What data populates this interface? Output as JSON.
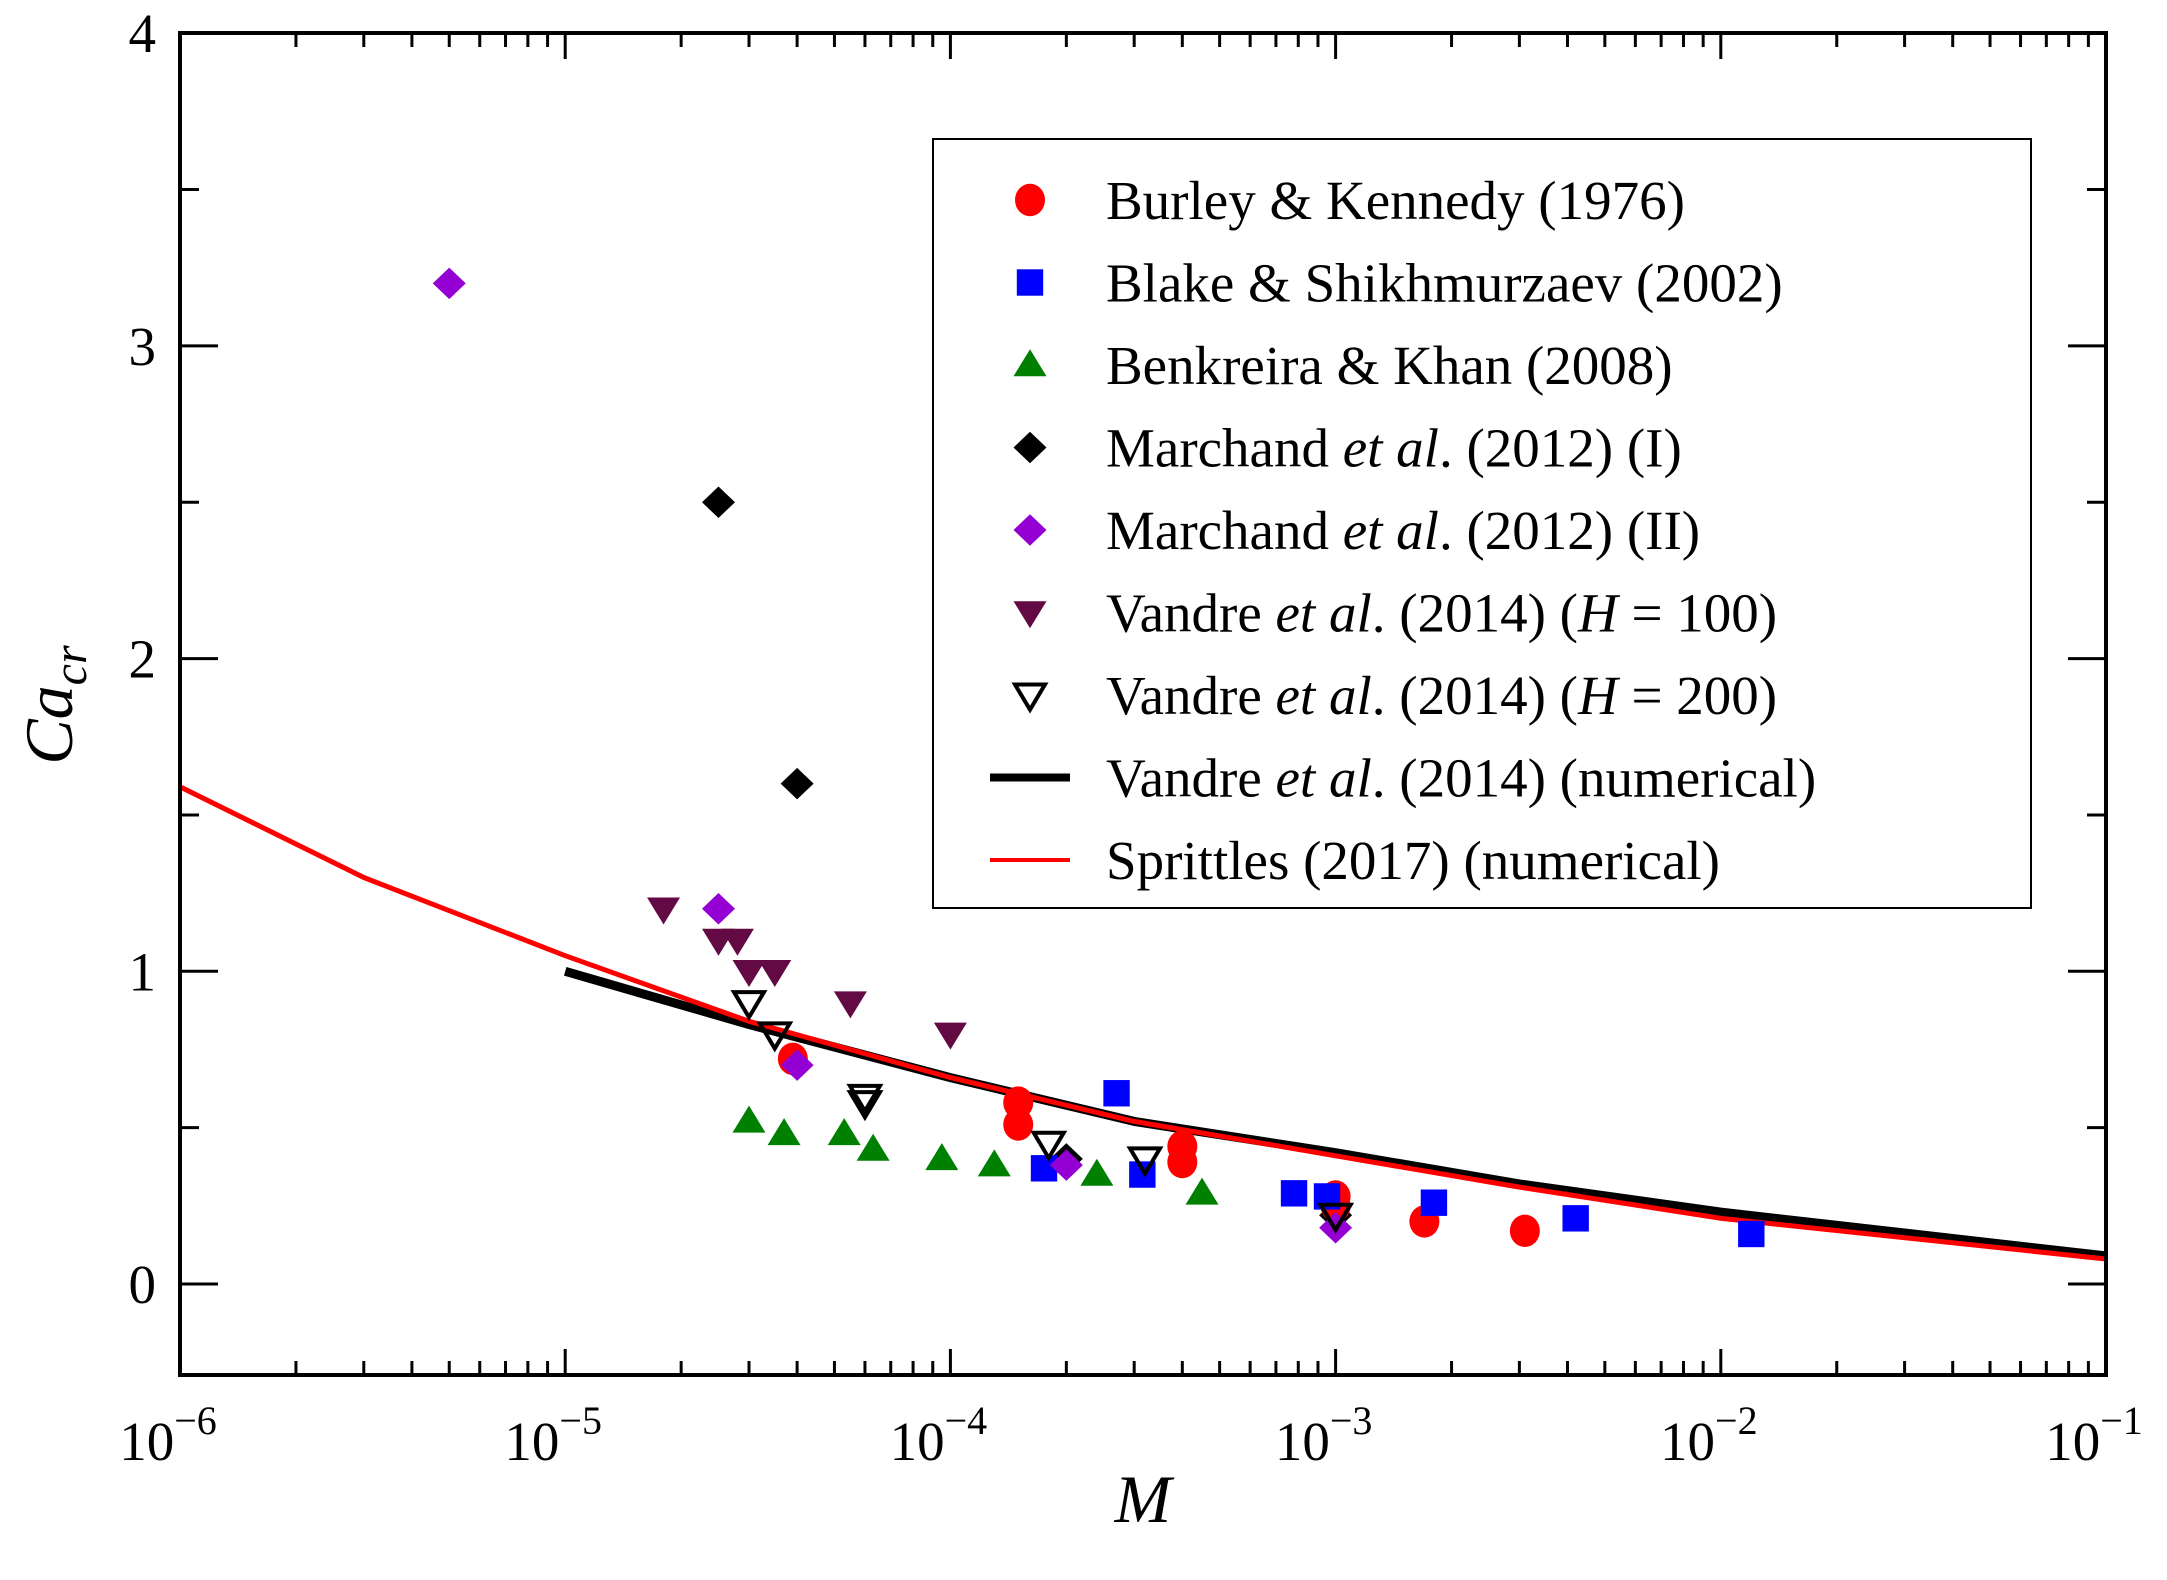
{
  "chart_data": {
    "type": "scatter",
    "title": "",
    "xlabel": "M",
    "ylabel": {
      "base": "Ca",
      "subscript": "cr"
    },
    "xscale": "log",
    "xlim": [
      1e-06,
      0.1
    ],
    "ylim": [
      -0.3,
      4
    ],
    "xticks": [
      {
        "value": 1e-06,
        "base": "10",
        "exp": "−6"
      },
      {
        "value": 1e-05,
        "base": "10",
        "exp": "−5"
      },
      {
        "value": 0.0001,
        "base": "10",
        "exp": "−4"
      },
      {
        "value": 0.001,
        "base": "10",
        "exp": "−3"
      },
      {
        "value": 0.01,
        "base": "10",
        "exp": "−2"
      },
      {
        "value": 0.1,
        "base": "10",
        "exp": "−1"
      }
    ],
    "yticks": [
      {
        "value": 0,
        "label": "0"
      },
      {
        "value": 1,
        "label": "1"
      },
      {
        "value": 2,
        "label": "2"
      },
      {
        "value": 3,
        "label": "3"
      },
      {
        "value": 4,
        "label": "4"
      }
    ],
    "yminor": [
      0.5,
      1.5,
      2.5,
      3.5
    ],
    "grid": false,
    "legend_position": "top-right",
    "series": [
      {
        "name": "Burley & Kennedy (1976)",
        "label_parts": [
          {
            "t": "Burley & Kennedy (1976)"
          }
        ],
        "kind": "points",
        "marker": "circle",
        "color": "#ff0000",
        "points": [
          [
            3.9e-05,
            0.72
          ],
          [
            0.00015,
            0.58
          ],
          [
            0.00015,
            0.51
          ],
          [
            0.0004,
            0.44
          ],
          [
            0.0004,
            0.39
          ],
          [
            0.001,
            0.28
          ],
          [
            0.001,
            0.25
          ],
          [
            0.0017,
            0.2
          ],
          [
            0.0031,
            0.17
          ]
        ]
      },
      {
        "name": "Blake & Shikhmurzaev (2002)",
        "label_parts": [
          {
            "t": "Blake & Shikhmurzaev (2002)"
          }
        ],
        "kind": "points",
        "marker": "square",
        "color": "#0000ff",
        "points": [
          [
            0.000175,
            0.37
          ],
          [
            0.00027,
            0.61
          ],
          [
            0.000315,
            0.35
          ],
          [
            0.00078,
            0.29
          ],
          [
            0.00095,
            0.28
          ],
          [
            0.0018,
            0.26
          ],
          [
            0.0042,
            0.21
          ],
          [
            0.012,
            0.16
          ]
        ]
      },
      {
        "name": "Benkreira & Khan (2008)",
        "label_parts": [
          {
            "t": "Benkreira & Khan (2008)"
          }
        ],
        "kind": "points",
        "marker": "triangle-up",
        "color": "#008000",
        "points": [
          [
            3e-05,
            0.52
          ],
          [
            3.7e-05,
            0.48
          ],
          [
            5.3e-05,
            0.48
          ],
          [
            6.3e-05,
            0.43
          ],
          [
            9.5e-05,
            0.4
          ],
          [
            0.00013,
            0.38
          ],
          [
            0.00024,
            0.35
          ],
          [
            0.00045,
            0.29
          ]
        ]
      },
      {
        "name": "Marchand et al. (2012) (I)",
        "label_parts": [
          {
            "t": "Marchand "
          },
          {
            "t": "et al",
            "i": true
          },
          {
            "t": ". (2012) (I)"
          }
        ],
        "kind": "points",
        "marker": "diamond",
        "color": "#000000",
        "points": [
          [
            2.5e-05,
            2.5
          ],
          [
            4e-05,
            1.6
          ],
          [
            0.0002,
            0.4
          ],
          [
            0.001,
            0.22
          ]
        ]
      },
      {
        "name": "Marchand et al. (2012) (II)",
        "label_parts": [
          {
            "t": "Marchand "
          },
          {
            "t": "et al",
            "i": true
          },
          {
            "t": ". (2012) (II)"
          }
        ],
        "kind": "points",
        "marker": "diamond",
        "color": "#9400d3",
        "points": [
          [
            5e-06,
            3.2
          ],
          [
            2.5e-05,
            1.2
          ],
          [
            4e-05,
            0.7
          ],
          [
            0.0002,
            0.38
          ],
          [
            0.001,
            0.18
          ]
        ]
      },
      {
        "name": "Vandre et al. (2014) (H = 100)",
        "label_parts": [
          {
            "t": "Vandre "
          },
          {
            "t": "et al",
            "i": true
          },
          {
            "t": ". (2014) ("
          },
          {
            "t": "H",
            "i": true
          },
          {
            "t": " = 100)"
          }
        ],
        "kind": "points",
        "marker": "triangle-down",
        "color": "#630a45",
        "points": [
          [
            1.8e-05,
            1.2
          ],
          [
            2.5e-05,
            1.1
          ],
          [
            2.8e-05,
            1.1
          ],
          [
            3e-05,
            1.0
          ],
          [
            3.5e-05,
            1.0
          ],
          [
            5.5e-05,
            0.9
          ],
          [
            0.0001,
            0.8
          ]
        ]
      },
      {
        "name": "Vandre et al. (2014) (H = 200)",
        "label_parts": [
          {
            "t": "Vandre "
          },
          {
            "t": "et al",
            "i": true
          },
          {
            "t": ". (2014) ("
          },
          {
            "t": "H",
            "i": true
          },
          {
            "t": " = 200)"
          }
        ],
        "kind": "points",
        "marker": "triangle-down-open",
        "color": "#000000",
        "points": [
          [
            3e-05,
            0.9
          ],
          [
            3.5e-05,
            0.8
          ],
          [
            6e-05,
            0.6
          ],
          [
            6e-05,
            0.58
          ],
          [
            0.00018,
            0.45
          ],
          [
            0.00032,
            0.4
          ],
          [
            0.001,
            0.22
          ]
        ]
      },
      {
        "name": "Vandre et al. (2014) (numerical)",
        "label_parts": [
          {
            "t": "Vandre "
          },
          {
            "t": "et al",
            "i": true
          },
          {
            "t": ". (2014) (numerical)"
          }
        ],
        "kind": "line",
        "color": "#000000",
        "weight": "thick",
        "points": [
          [
            1e-05,
            1.0
          ],
          [
            3e-05,
            0.83
          ],
          [
            0.0001,
            0.66
          ],
          [
            0.0003,
            0.52
          ],
          [
            0.001,
            0.42
          ],
          [
            0.003,
            0.32
          ],
          [
            0.01,
            0.23
          ],
          [
            0.1,
            0.09
          ]
        ]
      },
      {
        "name": "Sprittles (2017) (numerical)",
        "label_parts": [
          {
            "t": "Sprittles (2017) (numerical)"
          }
        ],
        "kind": "line",
        "color": "#ff0000",
        "weight": "thin",
        "points": [
          [
            1e-06,
            1.59
          ],
          [
            3e-06,
            1.3
          ],
          [
            1e-05,
            1.05
          ],
          [
            3e-05,
            0.84
          ],
          [
            0.0001,
            0.66
          ],
          [
            0.0003,
            0.52
          ],
          [
            0.001,
            0.41
          ],
          [
            0.003,
            0.31
          ],
          [
            0.01,
            0.21
          ],
          [
            0.1,
            0.08
          ]
        ]
      }
    ]
  }
}
